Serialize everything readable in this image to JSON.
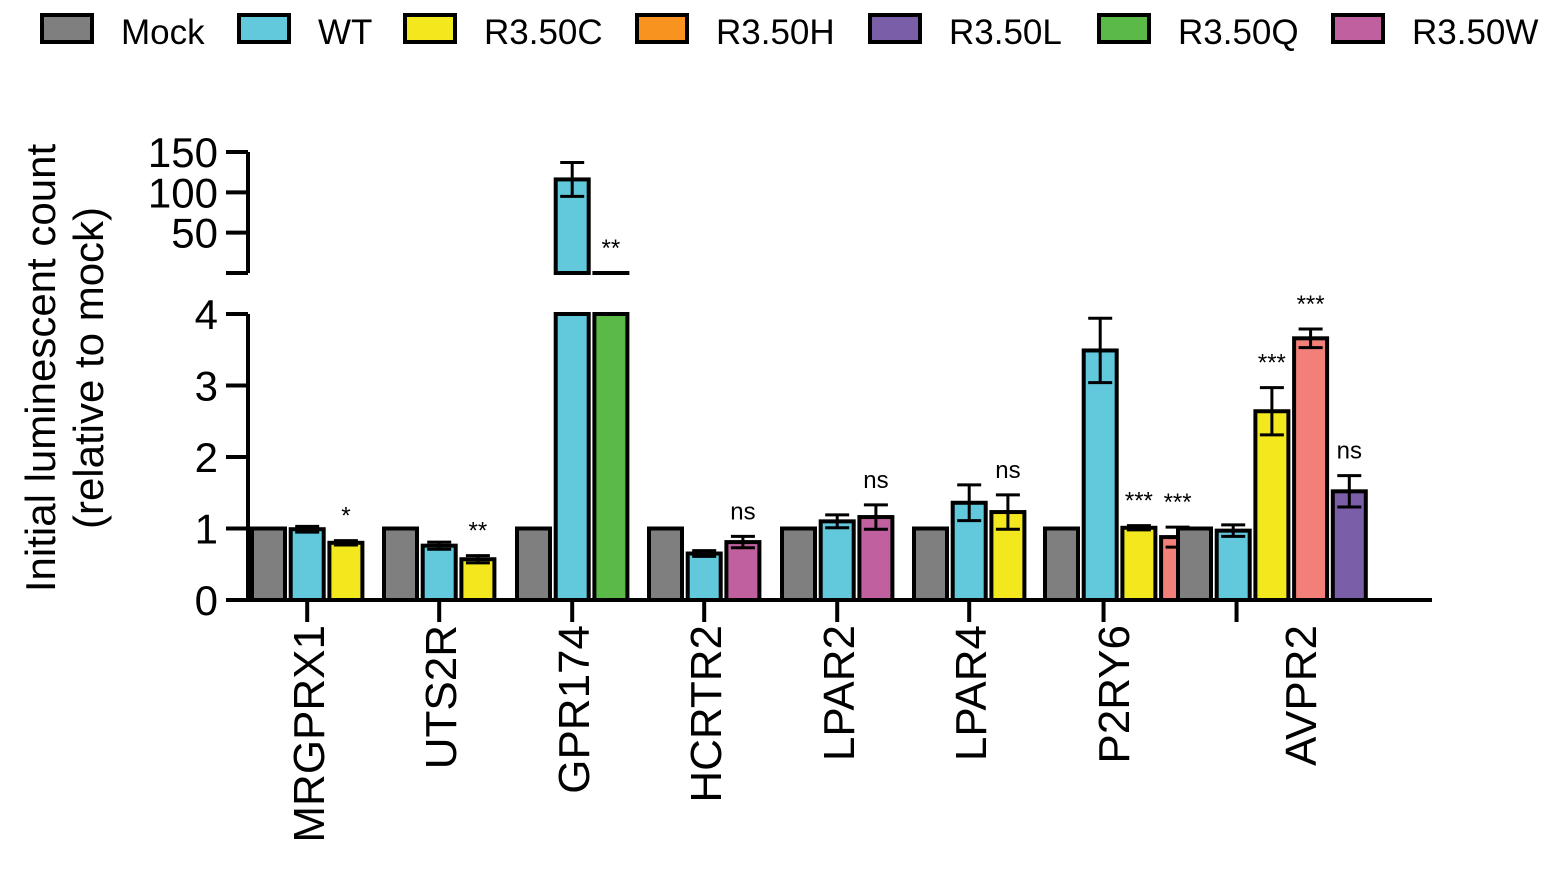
{
  "chart_data": {
    "type": "bar",
    "ylabel": [
      "Initial luminescent count",
      "(relative to mock)"
    ],
    "y_axis_broken": true,
    "y_lower_range": [
      0,
      4
    ],
    "y_lower_ticks": [
      "0",
      "1",
      "2",
      "3",
      "4"
    ],
    "y_upper_range": [
      0,
      150
    ],
    "y_upper_ticks": [
      "50",
      "100",
      "150"
    ],
    "legend_position": "top",
    "legend": [
      {
        "name": "Mock",
        "color": "#7f7f7f"
      },
      {
        "name": "WT",
        "color": "#62c9dc"
      },
      {
        "name": "R3.50C",
        "color": "#f3e81e"
      },
      {
        "name": "R3.50H",
        "color": "#f7931e"
      },
      {
        "name": "R3.50L",
        "color": "#7b5ea8"
      },
      {
        "name": "R3.50Q",
        "color": "#5bb947"
      },
      {
        "name": "R3.50W",
        "color": "#c1609e"
      }
    ],
    "groups": [
      {
        "category": "MRGPRX1",
        "bars": [
          {
            "series": "Mock",
            "value": 1.0,
            "err": 0
          },
          {
            "series": "WT",
            "value": 0.99,
            "err": 0.04
          },
          {
            "series": "R3.50C",
            "value": 0.8,
            "err": 0.03,
            "annotation": "*"
          }
        ]
      },
      {
        "category": "UTS2R",
        "bars": [
          {
            "series": "Mock",
            "value": 1.0,
            "err": 0
          },
          {
            "series": "WT",
            "value": 0.76,
            "err": 0.05
          },
          {
            "series": "R3.50C",
            "value": 0.57,
            "err": 0.05,
            "annotation": "**"
          }
        ]
      },
      {
        "category": "GPR174",
        "bars": [
          {
            "series": "Mock",
            "value": 1.0,
            "err": 0
          },
          {
            "series": "WT",
            "value": 116,
            "err": 21
          },
          {
            "series": "R3.50Q",
            "value": 4.1,
            "err": 0,
            "annotation": "**"
          }
        ]
      },
      {
        "category": "HCRTR2",
        "bars": [
          {
            "series": "Mock",
            "value": 1.0,
            "err": 0
          },
          {
            "series": "WT",
            "value": 0.65,
            "err": 0.04
          },
          {
            "series": "R3.50W",
            "value": 0.81,
            "err": 0.08,
            "annotation": "ns"
          }
        ]
      },
      {
        "category": "LPAR2",
        "bars": [
          {
            "series": "Mock",
            "value": 1.0,
            "err": 0
          },
          {
            "series": "WT",
            "value": 1.1,
            "err": 0.09
          },
          {
            "series": "R3.50W",
            "value": 1.16,
            "err": 0.17,
            "annotation": "ns"
          }
        ]
      },
      {
        "category": "LPAR4",
        "bars": [
          {
            "series": "Mock",
            "value": 1.0,
            "err": 0
          },
          {
            "series": "WT",
            "value": 1.36,
            "err": 0.25
          },
          {
            "series": "R3.50C",
            "value": 1.23,
            "err": 0.24,
            "annotation": "ns"
          }
        ]
      },
      {
        "category": "P2RY6",
        "bars": [
          {
            "series": "Mock",
            "value": 1.0,
            "err": 0
          },
          {
            "series": "WT",
            "value": 3.49,
            "err": 0.45
          },
          {
            "series": "R3.50C",
            "value": 1.01,
            "err": 0.03,
            "annotation": "***"
          },
          {
            "series": "R3.50H",
            "value": 0.88,
            "err": 0.14,
            "annotation": "***",
            "color": "#f28078"
          }
        ]
      },
      {
        "category": "AVPR2",
        "bars": [
          {
            "series": "Mock",
            "value": 1.0,
            "err": 0
          },
          {
            "series": "WT",
            "value": 0.97,
            "err": 0.08
          },
          {
            "series": "R3.50C",
            "value": 2.64,
            "err": 0.33,
            "annotation": "***"
          },
          {
            "series": "R3.50H",
            "value": 3.66,
            "err": 0.13,
            "annotation": "***",
            "color": "#f28078"
          },
          {
            "series": "R3.50L",
            "value": 1.52,
            "err": 0.22,
            "annotation": "ns"
          }
        ]
      }
    ]
  }
}
